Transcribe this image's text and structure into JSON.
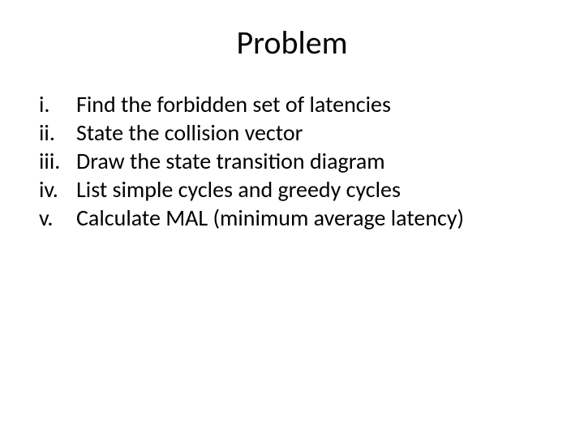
{
  "title": "Problem",
  "items": [
    {
      "marker": "i.",
      "text": "Find the forbidden set of latencies"
    },
    {
      "marker": "ii.",
      "text": "State the collision vector"
    },
    {
      "marker": "iii.",
      "text": "Draw the state transition diagram"
    },
    {
      "marker": "iv.",
      "text": "List simple cycles and greedy cycles"
    },
    {
      "marker": "v.",
      "text": "Calculate MAL (minimum average latency)"
    }
  ]
}
